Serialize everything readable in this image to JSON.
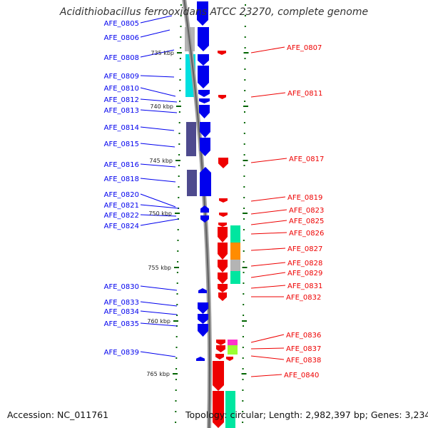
{
  "title": "Acidithiobacillus ferrooxidans ATCC 23270, complete genome",
  "footer": {
    "accession": "Accession: NC_011761",
    "topology": "Topology: circular; Length: 2,982,397 bp; Genes: 3,234"
  },
  "colors": {
    "forward_strand": "#0000ee",
    "reverse_strand": "#ee0000",
    "backbone": "#808080",
    "tick": "#006400",
    "cog_cyan": "#00e0e0",
    "cog_gray": "#b4b4b4",
    "cog_slate": "#4e4a8e",
    "cog_mint": "#00e6a0",
    "cog_orange": "#ff8c00",
    "cog_magenta": "#ff33cc",
    "cog_lime": "#99ff33"
  },
  "kbp_labels": [
    "735 kbp",
    "740 kbp",
    "745 kbp",
    "750 kbp",
    "755 kbp",
    "760 kbp",
    "765 kbp"
  ],
  "forward_genes": [
    "AFE_0805",
    "AFE_0806",
    "AFE_0808",
    "AFE_0809",
    "AFE_0810",
    "AFE_0812",
    "AFE_0813",
    "AFE_0814",
    "AFE_0815",
    "AFE_0816",
    "AFE_0818",
    "AFE_0820",
    "AFE_0821",
    "AFE_0822",
    "AFE_0824",
    "AFE_0830",
    "AFE_0833",
    "AFE_0834",
    "AFE_0835",
    "AFE_0839"
  ],
  "reverse_genes": [
    "AFE_0807",
    "AFE_0811",
    "AFE_0817",
    "AFE_0819",
    "AFE_0823",
    "AFE_0825",
    "AFE_0826",
    "AFE_0827",
    "AFE_0828",
    "AFE_0829",
    "AFE_0831",
    "AFE_0832",
    "AFE_0836",
    "AFE_0837",
    "AFE_0838",
    "AFE_0840"
  ]
}
